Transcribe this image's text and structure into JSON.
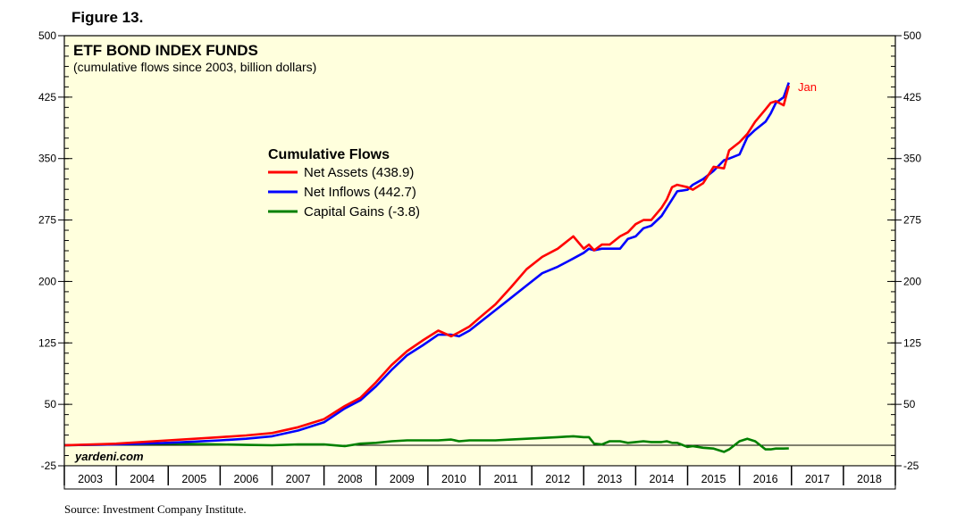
{
  "figure_label": "Figure 13.",
  "source": "Source: Investment Company Institute.",
  "chart_data": {
    "type": "line",
    "title": "ETF BOND INDEX FUNDS",
    "subtitle": "(cumulative flows since 2003, billion dollars)",
    "legend_title": "Cumulative Flows",
    "legend_position": "top-left",
    "watermark": "yardeni.com",
    "end_annotation": "Jan",
    "ylim": [
      -25,
      500
    ],
    "yticks": [
      -25,
      50,
      125,
      200,
      275,
      350,
      425,
      500
    ],
    "xlim": [
      2003.0,
      2019.0
    ],
    "xlabels": [
      "2003",
      "2004",
      "2005",
      "2006",
      "2007",
      "2008",
      "2009",
      "2010",
      "2011",
      "2012",
      "2013",
      "2014",
      "2015",
      "2016",
      "2017",
      "2018"
    ],
    "baseline": 0,
    "colors": {
      "background": "#ffffdd",
      "net_assets": "#ff0000",
      "net_inflows": "#0000ff",
      "capital_gains": "#008000"
    },
    "series": [
      {
        "name": "Net Inflows",
        "legend": "Net Inflows (442.7)",
        "color": "#0000ff",
        "x": [
          2003.0,
          2004.0,
          2005.0,
          2006.0,
          2006.5,
          2007.0,
          2007.5,
          2008.0,
          2008.4,
          2008.7,
          2009.0,
          2009.3,
          2009.6,
          2009.9,
          2010.2,
          2010.45,
          2010.6,
          2010.8,
          2011.0,
          2011.3,
          2011.6,
          2011.9,
          2012.2,
          2012.5,
          2012.8,
          2013.0,
          2013.1,
          2013.2,
          2013.35,
          2013.5,
          2013.7,
          2013.85,
          2014.0,
          2014.15,
          2014.3,
          2014.5,
          2014.6,
          2014.7,
          2014.8,
          2015.0,
          2015.1,
          2015.3,
          2015.5,
          2015.7,
          2015.8,
          2016.0,
          2016.15,
          2016.3,
          2016.5,
          2016.6,
          2016.7,
          2016.85,
          2016.95
        ],
        "values": [
          0,
          1,
          3,
          6,
          8,
          11,
          18,
          28,
          45,
          55,
          72,
          92,
          110,
          122,
          135,
          135,
          133,
          140,
          150,
          165,
          180,
          195,
          210,
          218,
          228,
          235,
          240,
          238,
          240,
          240,
          240,
          252,
          255,
          265,
          268,
          280,
          290,
          300,
          310,
          312,
          318,
          325,
          335,
          348,
          350,
          355,
          376,
          385,
          395,
          405,
          418,
          425,
          442.7
        ]
      },
      {
        "name": "Net Assets",
        "legend": "Net Assets (438.9)",
        "color": "#ff0000",
        "x": [
          2003.0,
          2004.0,
          2005.0,
          2006.0,
          2006.5,
          2007.0,
          2007.5,
          2008.0,
          2008.4,
          2008.7,
          2009.0,
          2009.3,
          2009.6,
          2009.9,
          2010.2,
          2010.45,
          2010.6,
          2010.8,
          2011.0,
          2011.3,
          2011.6,
          2011.9,
          2012.2,
          2012.5,
          2012.8,
          2013.0,
          2013.1,
          2013.2,
          2013.35,
          2013.5,
          2013.7,
          2013.85,
          2014.0,
          2014.15,
          2014.3,
          2014.5,
          2014.6,
          2014.7,
          2014.8,
          2015.0,
          2015.1,
          2015.3,
          2015.5,
          2015.7,
          2015.8,
          2016.0,
          2016.15,
          2016.3,
          2016.5,
          2016.6,
          2016.7,
          2016.85,
          2016.95
        ],
        "values": [
          0,
          2,
          6,
          10,
          12,
          15,
          22,
          32,
          48,
          58,
          77,
          98,
          115,
          128,
          140,
          133,
          138,
          145,
          156,
          172,
          193,
          215,
          230,
          240,
          255,
          240,
          245,
          238,
          245,
          245,
          255,
          260,
          270,
          275,
          275,
          290,
          300,
          315,
          318,
          315,
          312,
          320,
          340,
          338,
          360,
          370,
          380,
          395,
          410,
          418,
          420,
          415,
          438.9
        ]
      },
      {
        "name": "Capital Gains",
        "legend": "Capital Gains (-3.8)",
        "color": "#008000",
        "x": [
          2003.0,
          2004.0,
          2005.0,
          2006.0,
          2006.5,
          2007.0,
          2007.5,
          2008.0,
          2008.4,
          2008.7,
          2009.0,
          2009.3,
          2009.6,
          2009.9,
          2010.2,
          2010.45,
          2010.6,
          2010.8,
          2011.0,
          2011.3,
          2011.6,
          2011.9,
          2012.2,
          2012.5,
          2012.8,
          2013.0,
          2013.1,
          2013.2,
          2013.35,
          2013.5,
          2013.7,
          2013.85,
          2014.0,
          2014.15,
          2014.3,
          2014.5,
          2014.6,
          2014.7,
          2014.8,
          2015.0,
          2015.1,
          2015.3,
          2015.5,
          2015.7,
          2015.8,
          2016.0,
          2016.15,
          2016.3,
          2016.5,
          2016.6,
          2016.7,
          2016.85,
          2016.95
        ],
        "values": [
          0,
          1,
          2,
          1,
          0.5,
          0,
          1,
          1,
          -1,
          2,
          3,
          5,
          6,
          6,
          6,
          7,
          5,
          6,
          6,
          6,
          7,
          8,
          9,
          10,
          11,
          10,
          10,
          2,
          1,
          5,
          5,
          3,
          4,
          5,
          4,
          4,
          5,
          3,
          3,
          -2,
          -1,
          -3,
          -4,
          -8,
          -5,
          5,
          8,
          5,
          -5,
          -5,
          -4,
          -4,
          -3.8
        ]
      }
    ]
  }
}
